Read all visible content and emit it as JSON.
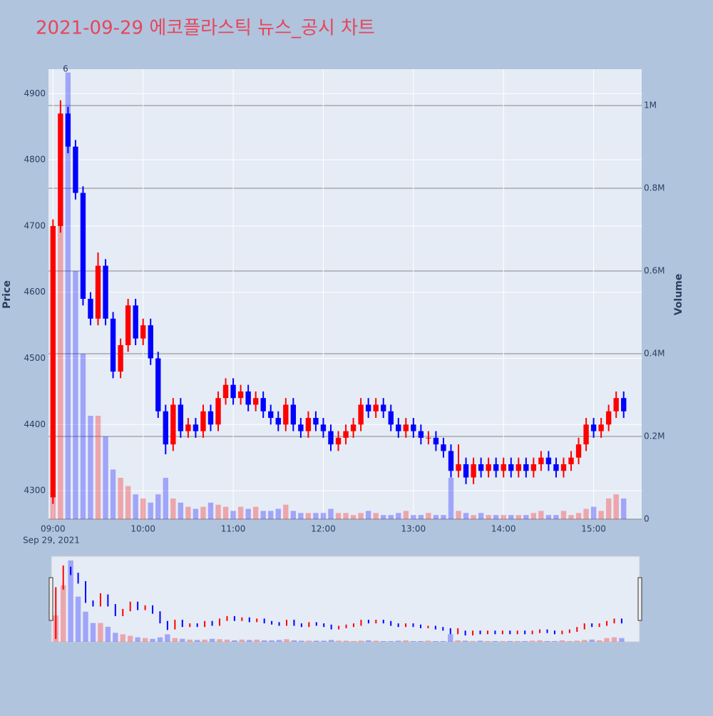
{
  "chart_data": {
    "type": "candlestick",
    "title": "2021-09-29 에코플라스틱 뉴스_공시 차트",
    "y_label": "Price",
    "y2_label": "Volume",
    "x_date_label": "Sep 29, 2021",
    "annotation": "6",
    "increasing_color": "#ff0000",
    "decreasing_color": "#0000ff",
    "x": [
      "09:00",
      "09:05",
      "09:10",
      "09:15",
      "09:20",
      "09:25",
      "09:30",
      "09:35",
      "09:40",
      "09:45",
      "09:50",
      "09:55",
      "10:00",
      "10:05",
      "10:10",
      "10:15",
      "10:20",
      "10:25",
      "10:30",
      "10:35",
      "10:40",
      "10:45",
      "10:50",
      "10:55",
      "11:00",
      "11:05",
      "11:10",
      "11:15",
      "11:20",
      "11:25",
      "11:30",
      "11:35",
      "11:40",
      "11:45",
      "11:50",
      "11:55",
      "12:00",
      "12:05",
      "12:10",
      "12:15",
      "12:20",
      "12:25",
      "12:30",
      "12:35",
      "12:40",
      "12:45",
      "12:50",
      "12:55",
      "13:00",
      "13:05",
      "13:10",
      "13:15",
      "13:20",
      "13:25",
      "13:30",
      "13:35",
      "13:40",
      "13:45",
      "13:50",
      "13:55",
      "14:00",
      "14:05",
      "14:10",
      "14:15",
      "14:20",
      "14:25",
      "14:30",
      "14:35",
      "14:40",
      "14:45",
      "14:50",
      "14:55",
      "15:00",
      "15:05",
      "15:10",
      "15:15",
      "15:20"
    ],
    "open": [
      4290,
      4700,
      4870,
      4820,
      4750,
      4590,
      4560,
      4640,
      4560,
      4480,
      4520,
      4580,
      4530,
      4550,
      4500,
      4420,
      4370,
      4430,
      4390,
      4400,
      4390,
      4420,
      4400,
      4440,
      4460,
      4440,
      4450,
      4430,
      4440,
      4420,
      4410,
      4400,
      4430,
      4400,
      4390,
      4410,
      4400,
      4390,
      4370,
      4380,
      4390,
      4400,
      4430,
      4420,
      4430,
      4420,
      4400,
      4390,
      4400,
      4390,
      4380,
      4380,
      4370,
      4360,
      4330,
      4340,
      4320,
      4340,
      4330,
      4340,
      4330,
      4340,
      4330,
      4340,
      4330,
      4340,
      4350,
      4340,
      4330,
      4340,
      4350,
      4370,
      4400,
      4390,
      4400,
      4420,
      4440
    ],
    "high": [
      4710,
      4890,
      4880,
      4830,
      4760,
      4600,
      4660,
      4650,
      4570,
      4530,
      4590,
      4590,
      4560,
      4560,
      4510,
      4430,
      4440,
      4440,
      4410,
      4410,
      4430,
      4430,
      4450,
      4470,
      4470,
      4460,
      4460,
      4450,
      4450,
      4430,
      4420,
      4440,
      4440,
      4410,
      4420,
      4420,
      4410,
      4400,
      4390,
      4400,
      4410,
      4440,
      4440,
      4440,
      4440,
      4430,
      4410,
      4410,
      4410,
      4400,
      4390,
      4390,
      4380,
      4370,
      4370,
      4350,
      4350,
      4350,
      4350,
      4350,
      4350,
      4350,
      4350,
      4350,
      4350,
      4360,
      4360,
      4350,
      4350,
      4360,
      4380,
      4410,
      4410,
      4410,
      4430,
      4450,
      4450
    ],
    "low": [
      4280,
      4690,
      4810,
      4740,
      4580,
      4550,
      4550,
      4550,
      4470,
      4470,
      4510,
      4520,
      4520,
      4490,
      4410,
      4355,
      4360,
      4380,
      4380,
      4380,
      4380,
      4390,
      4390,
      4430,
      4430,
      4430,
      4420,
      4420,
      4410,
      4400,
      4390,
      4390,
      4390,
      4380,
      4380,
      4390,
      4380,
      4360,
      4360,
      4370,
      4380,
      4390,
      4410,
      4410,
      4410,
      4390,
      4380,
      4380,
      4380,
      4370,
      4370,
      4360,
      4350,
      4320,
      4320,
      4310,
      4310,
      4320,
      4320,
      4320,
      4320,
      4320,
      4320,
      4320,
      4320,
      4330,
      4330,
      4320,
      4320,
      4330,
      4340,
      4360,
      4380,
      4380,
      4390,
      4410,
      4410
    ],
    "close": [
      4700,
      4870,
      4820,
      4750,
      4590,
      4560,
      4640,
      4560,
      4480,
      4520,
      4580,
      4530,
      4550,
      4500,
      4420,
      4370,
      4430,
      4390,
      4400,
      4390,
      4420,
      4400,
      4440,
      4460,
      4440,
      4450,
      4430,
      4440,
      4420,
      4410,
      4400,
      4430,
      4400,
      4390,
      4410,
      4400,
      4390,
      4370,
      4380,
      4390,
      4400,
      4430,
      4420,
      4430,
      4420,
      4400,
      4390,
      4400,
      4390,
      4380,
      4380,
      4370,
      4360,
      4330,
      4340,
      4320,
      4340,
      4330,
      4340,
      4330,
      4340,
      4330,
      4340,
      4330,
      4340,
      4350,
      4340,
      4330,
      4340,
      4350,
      4370,
      4400,
      4390,
      4400,
      4420,
      4440,
      4420
    ],
    "volume": [
      350000,
      750000,
      1080000,
      600000,
      400000,
      250000,
      250000,
      200000,
      120000,
      100000,
      80000,
      60000,
      50000,
      40000,
      60000,
      100000,
      50000,
      40000,
      30000,
      25000,
      30000,
      40000,
      35000,
      30000,
      20000,
      30000,
      25000,
      30000,
      20000,
      20000,
      25000,
      35000,
      20000,
      15000,
      15000,
      15000,
      15000,
      25000,
      15000,
      15000,
      10000,
      15000,
      20000,
      15000,
      10000,
      10000,
      15000,
      20000,
      10000,
      10000,
      15000,
      10000,
      10000,
      100000,
      20000,
      15000,
      10000,
      15000,
      10000,
      10000,
      10000,
      10000,
      10000,
      10000,
      15000,
      20000,
      10000,
      10000,
      20000,
      10000,
      15000,
      25000,
      30000,
      20000,
      50000,
      60000,
      50000
    ],
    "xlim": [
      "08:57",
      "15:32"
    ],
    "xticks": [
      "09:00",
      "10:00",
      "11:00",
      "12:00",
      "13:00",
      "14:00",
      "15:00"
    ],
    "ylim": [
      4257,
      4937
    ],
    "yticks": [
      4300,
      4400,
      4500,
      4600,
      4700,
      4800,
      4900
    ],
    "y2lim": [
      0,
      1088000
    ],
    "y2ticks": [
      0,
      {
        "value": 200000,
        "label": "0.2M"
      },
      {
        "value": 400000,
        "label": "0.4M"
      },
      {
        "value": 600000,
        "label": "0.6M"
      },
      {
        "value": 800000,
        "label": "0.8M"
      },
      {
        "value": 1000000,
        "label": "1M"
      }
    ]
  }
}
